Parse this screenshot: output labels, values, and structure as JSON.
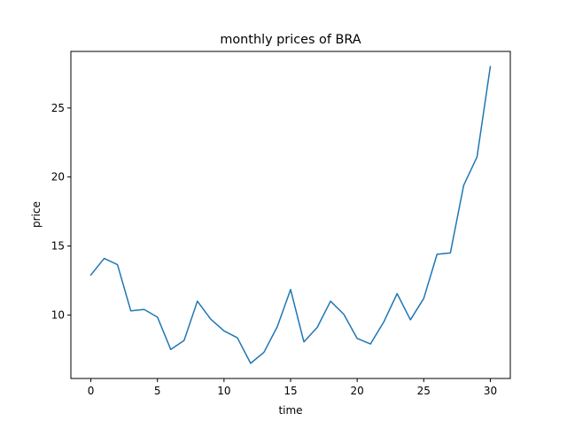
{
  "chart_data": {
    "type": "line",
    "title": "monthly prices of BRA",
    "xlabel": "time",
    "ylabel": "price",
    "xlim": [
      -1.5,
      31.5
    ],
    "ylim": [
      5.4,
      29.1
    ],
    "x_ticks": [
      0,
      5,
      10,
      15,
      20,
      25,
      30
    ],
    "y_ticks": [
      10,
      15,
      20,
      25
    ],
    "grid": false,
    "series": [
      {
        "color": "#1f77b4",
        "x": [
          0,
          1,
          2,
          3,
          4,
          5,
          6,
          7,
          8,
          9,
          10,
          11,
          12,
          13,
          14,
          15,
          16,
          17,
          18,
          19,
          20,
          21,
          22,
          23,
          24,
          25,
          26,
          27,
          28,
          29,
          30
        ],
        "values": [
          12.9,
          14.1,
          13.65,
          10.3,
          10.4,
          9.85,
          7.5,
          8.15,
          11.0,
          9.7,
          8.85,
          8.35,
          6.5,
          7.3,
          9.15,
          11.85,
          8.05,
          9.1,
          11.0,
          10.05,
          8.3,
          7.9,
          9.5,
          11.55,
          9.65,
          11.2,
          14.4,
          14.5,
          19.4,
          21.45,
          28.0
        ]
      }
    ]
  }
}
